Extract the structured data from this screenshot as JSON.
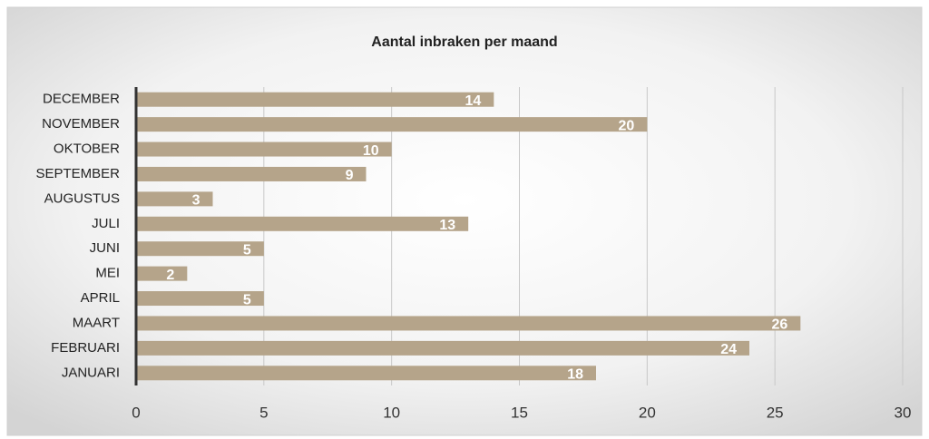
{
  "chart_data": {
    "type": "bar",
    "orientation": "horizontal",
    "title": "Aantal inbraken per maand",
    "categories": [
      "JANUARI",
      "FEBRUARI",
      "MAART",
      "APRIL",
      "MEI",
      "JUNI",
      "JULI",
      "AUGUSTUS",
      "SEPTEMBER",
      "OKTOBER",
      "NOVEMBER",
      "DECEMBER"
    ],
    "values": [
      18,
      24,
      26,
      5,
      2,
      5,
      13,
      3,
      9,
      10,
      20,
      14
    ],
    "color": "#b5a48a",
    "xlim": [
      0,
      30
    ],
    "xticks": [
      0,
      5,
      10,
      15,
      20,
      25,
      30
    ],
    "grid": true
  }
}
